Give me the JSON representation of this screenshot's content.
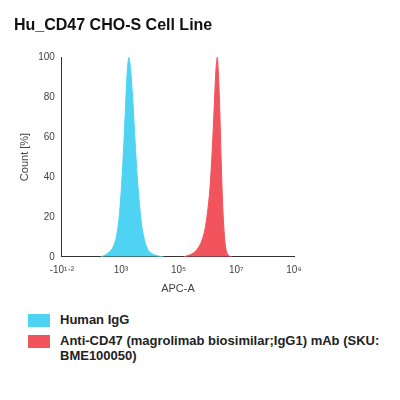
{
  "chart_data": {
    "type": "histogram",
    "title": "Hu_CD47 CHO-S Cell Line",
    "x_label": "APC-A",
    "y_label": "Count [%]",
    "log": "x",
    "xlim": [
      -15.85,
      1000000000
    ],
    "xticks": [
      {
        "value": -15.85,
        "label": "-10¹·²"
      },
      {
        "value": 1000,
        "label": "10³"
      },
      {
        "value": 100000,
        "label": "10⁵"
      },
      {
        "value": 10000000,
        "label": "10⁷"
      },
      {
        "value": 1000000000,
        "label": "10⁹"
      }
    ],
    "ylim": [
      0,
      100
    ],
    "yticks": [
      0,
      20,
      40,
      60,
      80,
      100
    ],
    "grid": false,
    "legend": "bottom",
    "series": [
      {
        "name": "Human IgG",
        "color": "#4fd3f2",
        "x": [
          200,
          300,
          500,
          700,
          900,
          1100,
          1300,
          1500,
          1700,
          1900,
          2200,
          2600,
          3100,
          3700,
          4500,
          5500,
          7000,
          9000,
          12000,
          18000,
          30000
        ],
        "values": [
          0,
          1,
          4,
          10,
          22,
          40,
          60,
          80,
          95,
          100,
          93,
          78,
          58,
          40,
          25,
          14,
          7,
          3,
          1.5,
          0.5,
          0
        ]
      },
      {
        "name": "Anti-CD47 (magrolimab biosimilar;IgG1) mAb (SKU: BME100050)",
        "color": "#f2545e",
        "x": [
          150000,
          250000,
          400000,
          600000,
          800000,
          1000000,
          1200000,
          1400000,
          1600000,
          1800000,
          2000000,
          2200000,
          2400000,
          2700000,
          3000000,
          3400000,
          3900000,
          4500000,
          5500000,
          7000000
        ],
        "values": [
          0,
          1,
          3,
          7,
          13,
          22,
          33,
          48,
          65,
          82,
          95,
          100,
          92,
          72,
          48,
          25,
          10,
          3,
          0.5,
          0
        ]
      }
    ]
  }
}
